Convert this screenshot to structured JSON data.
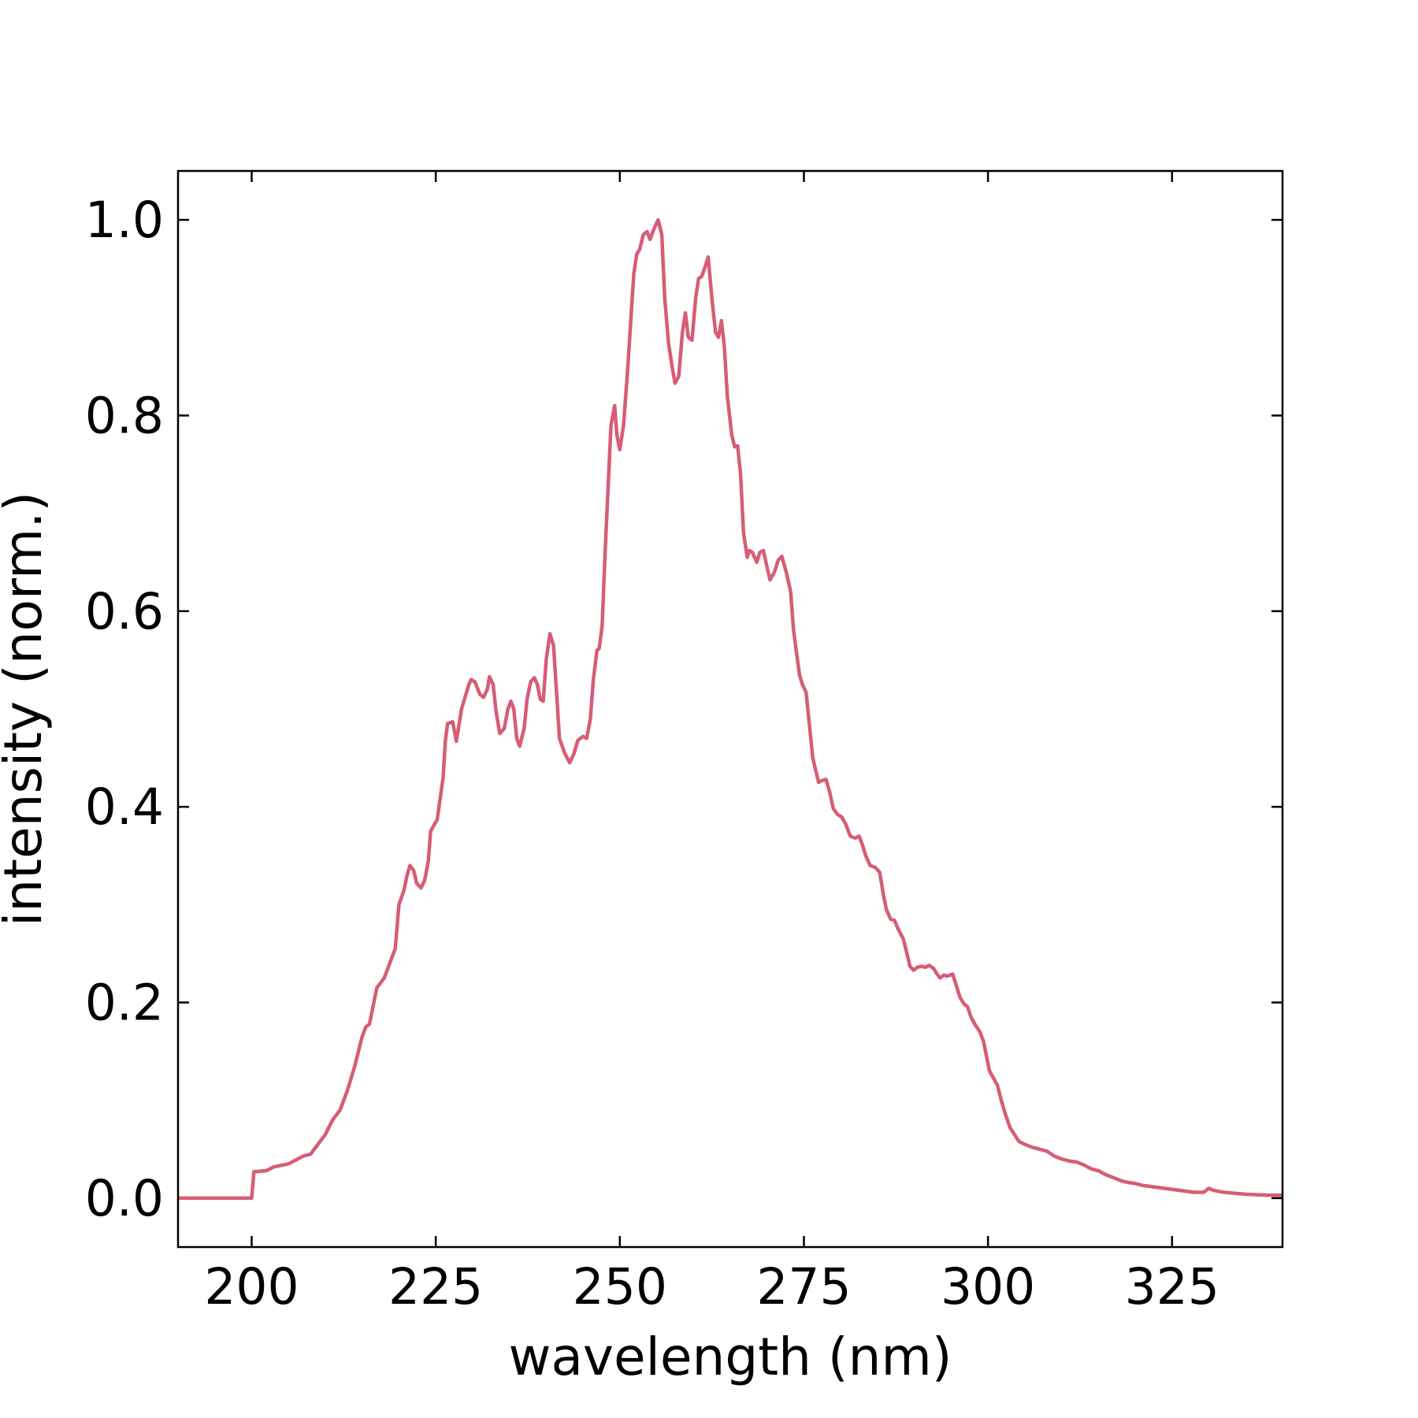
{
  "chart_data": {
    "type": "line",
    "x_label": "wavelength (nm)",
    "y_label": "intensity (norm.)",
    "color": "#d65d75",
    "xlim": [
      190,
      340
    ],
    "ylim": [
      -0.05,
      1.05
    ],
    "xticks": [
      200,
      225,
      250,
      275,
      300,
      325
    ],
    "yticks": [
      {
        "value": 0,
        "label": "0.0"
      },
      0.2,
      0.4,
      0.6,
      0.8,
      {
        "value": 1,
        "label": "1.0"
      }
    ],
    "x": [
      190,
      200,
      200.3,
      202,
      203,
      205,
      207,
      208,
      209,
      210,
      211,
      212,
      213,
      214,
      215,
      215.5,
      216,
      217,
      218,
      219,
      219.5,
      220,
      220.7,
      221.1,
      221.5,
      222,
      222.4,
      223,
      223.5,
      224,
      224.3,
      225.2,
      226,
      226.3,
      226.6,
      227.3,
      227.8,
      228.5,
      229.5,
      229.8,
      230.3,
      231,
      231.5,
      232,
      232.3,
      232.8,
      233.2,
      233.7,
      234.3,
      234.8,
      235.2,
      235.6,
      236,
      236.4,
      237,
      237.4,
      237.9,
      238.4,
      238.8,
      239.2,
      239.6,
      240,
      240.5,
      241,
      241.8,
      242.5,
      243.2,
      243.8,
      244.3,
      245,
      245.5,
      246,
      246.4,
      246.9,
      247.2,
      247.6,
      248,
      248.8,
      249.3,
      249.6,
      250,
      250.5,
      251,
      251.9,
      252.3,
      252.7,
      253.2,
      253.7,
      254.1,
      254.6,
      255.2,
      255.7,
      256.1,
      256.6,
      257.1,
      257.5,
      258,
      258.5,
      258.9,
      259.3,
      259.8,
      260.3,
      260.7,
      261.1,
      261.5,
      262,
      262.5,
      263,
      263.4,
      263.8,
      264.2,
      264.6,
      265.2,
      265.6,
      266,
      266.4,
      266.8,
      267.3,
      267.6,
      268,
      268.6,
      269,
      269.5,
      270,
      270.4,
      271,
      271.5,
      272,
      272.6,
      273.2,
      273.6,
      274.4,
      274.8,
      275.3,
      275.8,
      276.2,
      277,
      277.5,
      278,
      278.5,
      279,
      279.6,
      280.1,
      280.7,
      281.3,
      282,
      282.5,
      283,
      283.4,
      284,
      284.7,
      285.3,
      285.8,
      286.2,
      286.8,
      287.3,
      287.8,
      288.5,
      289,
      289.4,
      289.9,
      290.4,
      291,
      291.5,
      292,
      292.6,
      293,
      293.5,
      294,
      294.5,
      295.2,
      295.8,
      296.2,
      296.8,
      297.2,
      297.7,
      298.2,
      298.9,
      299.4,
      299.8,
      300.2,
      300.8,
      301.3,
      301.8,
      302.4,
      303,
      303.6,
      304.2,
      305,
      306,
      307,
      308,
      309,
      310,
      311,
      312,
      313,
      314,
      315,
      316,
      317,
      318,
      319,
      320,
      321,
      322,
      324,
      326,
      328,
      329.3,
      330,
      330.6,
      332,
      335,
      338,
      340
    ],
    "values": [
      0.0,
      0.0,
      0.027,
      0.028,
      0.032,
      0.035,
      0.043,
      0.045,
      0.055,
      0.065,
      0.08,
      0.09,
      0.11,
      0.135,
      0.165,
      0.175,
      0.178,
      0.215,
      0.225,
      0.245,
      0.255,
      0.3,
      0.315,
      0.33,
      0.34,
      0.335,
      0.322,
      0.317,
      0.325,
      0.345,
      0.375,
      0.387,
      0.43,
      0.467,
      0.485,
      0.487,
      0.467,
      0.5,
      0.525,
      0.53,
      0.528,
      0.515,
      0.512,
      0.52,
      0.533,
      0.525,
      0.497,
      0.475,
      0.48,
      0.5,
      0.508,
      0.5,
      0.47,
      0.462,
      0.48,
      0.51,
      0.528,
      0.532,
      0.525,
      0.51,
      0.508,
      0.55,
      0.577,
      0.565,
      0.47,
      0.455,
      0.445,
      0.455,
      0.468,
      0.472,
      0.47,
      0.49,
      0.53,
      0.56,
      0.562,
      0.585,
      0.66,
      0.79,
      0.81,
      0.78,
      0.765,
      0.79,
      0.84,
      0.945,
      0.965,
      0.97,
      0.985,
      0.988,
      0.98,
      0.99,
      1.0,
      0.985,
      0.92,
      0.875,
      0.85,
      0.833,
      0.84,
      0.885,
      0.905,
      0.88,
      0.877,
      0.92,
      0.94,
      0.942,
      0.95,
      0.962,
      0.92,
      0.885,
      0.88,
      0.897,
      0.87,
      0.82,
      0.78,
      0.768,
      0.769,
      0.74,
      0.68,
      0.655,
      0.662,
      0.66,
      0.65,
      0.66,
      0.662,
      0.645,
      0.632,
      0.64,
      0.652,
      0.656,
      0.64,
      0.62,
      0.58,
      0.535,
      0.525,
      0.517,
      0.48,
      0.45,
      0.425,
      0.427,
      0.428,
      0.415,
      0.398,
      0.392,
      0.39,
      0.382,
      0.37,
      0.368,
      0.37,
      0.36,
      0.35,
      0.34,
      0.338,
      0.333,
      0.31,
      0.295,
      0.285,
      0.284,
      0.275,
      0.265,
      0.25,
      0.237,
      0.233,
      0.236,
      0.237,
      0.236,
      0.238,
      0.235,
      0.23,
      0.225,
      0.228,
      0.227,
      0.229,
      0.215,
      0.205,
      0.198,
      0.196,
      0.185,
      0.178,
      0.17,
      0.16,
      0.145,
      0.13,
      0.122,
      0.115,
      0.1,
      0.085,
      0.072,
      0.065,
      0.058,
      0.055,
      0.052,
      0.05,
      0.048,
      0.043,
      0.04,
      0.038,
      0.037,
      0.034,
      0.03,
      0.028,
      0.024,
      0.021,
      0.018,
      0.016,
      0.015,
      0.013,
      0.012,
      0.01,
      0.008,
      0.006,
      0.006,
      0.01,
      0.008,
      0.006,
      0.004,
      0.003,
      0.003
    ]
  }
}
